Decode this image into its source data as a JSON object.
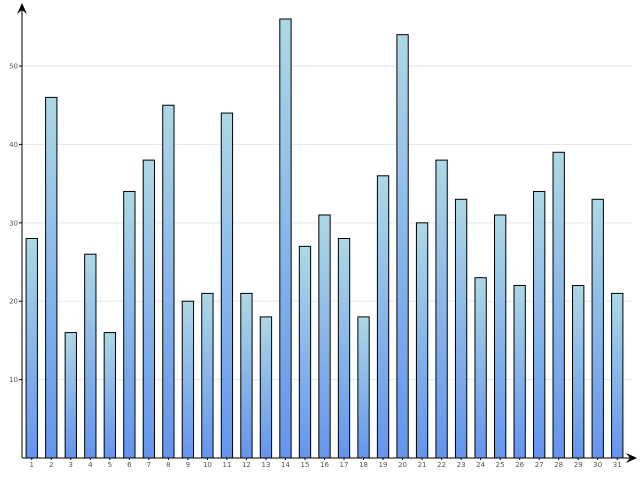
{
  "chart_data": {
    "type": "bar",
    "categories": [
      "1",
      "2",
      "3",
      "4",
      "5",
      "6",
      "7",
      "8",
      "9",
      "10",
      "11",
      "12",
      "13",
      "14",
      "15",
      "16",
      "17",
      "18",
      "19",
      "20",
      "21",
      "22",
      "23",
      "24",
      "25",
      "26",
      "27",
      "28",
      "29",
      "30",
      "31"
    ],
    "values": [
      28,
      46,
      16,
      26,
      16,
      34,
      38,
      45,
      20,
      21,
      44,
      21,
      18,
      56,
      27,
      31,
      28,
      18,
      36,
      54,
      30,
      38,
      33,
      23,
      31,
      22,
      34,
      39,
      22,
      33,
      21
    ],
    "yticks": [
      "10",
      "20",
      "30",
      "40",
      "50"
    ],
    "ylim": [
      0,
      58
    ],
    "grid": true,
    "colors": {
      "bar_top": "#add8e6",
      "bar_bottom": "#6495ed",
      "bar_stroke": "#000000",
      "grid": "#e6e6e6",
      "axis": "#000000"
    }
  }
}
